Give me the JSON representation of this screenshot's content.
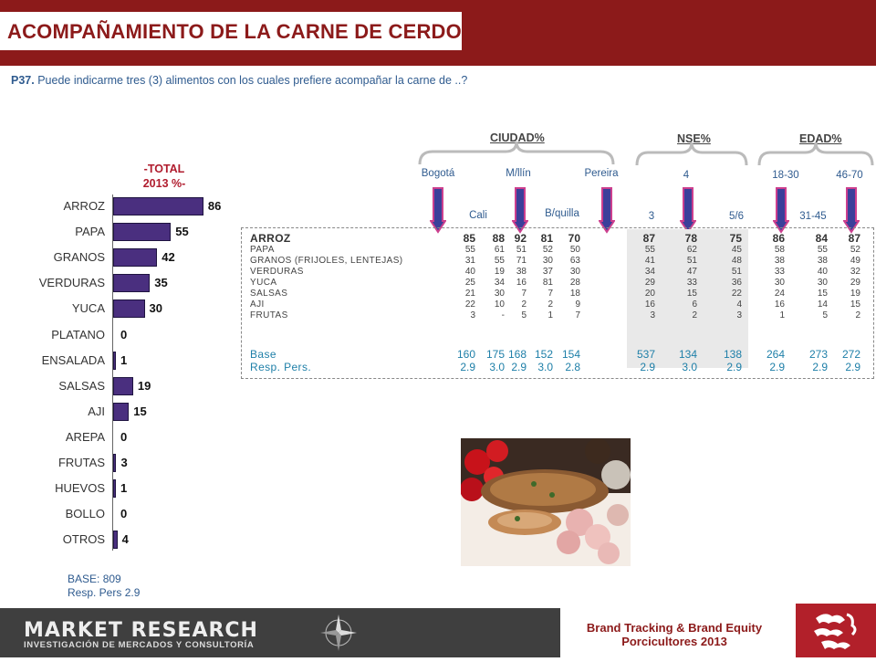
{
  "title": "ACOMPAÑAMIENTO DE LA CARNE DE  CERDO",
  "question": {
    "code": "P37.",
    "text": "Puede indicarme tres (3) alimentos con los cuales prefiere acompañar la carne de ..?"
  },
  "total_header": {
    "line1": "-TOTAL",
    "line2": "2013 %-"
  },
  "total_base": {
    "base_label": "BASE:",
    "base_value": "809",
    "resp_label": "Resp. Pers",
    "resp_value": "2.9"
  },
  "groups": {
    "ciudad": "CIUDAD%",
    "nse": "NSE%",
    "edad": "EDAD%"
  },
  "columns": [
    "Bogotá",
    "Cali",
    "M/llín",
    "B/quilla",
    "Pereira",
    "3",
    "4",
    "5/6",
    "18-30",
    "31-45",
    "46-70"
  ],
  "table_rows": [
    {
      "label": "ARROZ",
      "values": [
        "85",
        "88",
        "92",
        "81",
        "70",
        "87",
        "78",
        "75",
        "86",
        "84",
        "87"
      ]
    },
    {
      "label": "PAPA",
      "values": [
        "55",
        "61",
        "51",
        "52",
        "50",
        "55",
        "62",
        "45",
        "58",
        "55",
        "52"
      ]
    },
    {
      "label": "GRANOS (FRIJOLES, LENTEJAS)",
      "values": [
        "31",
        "55",
        "71",
        "30",
        "63",
        "41",
        "51",
        "48",
        "38",
        "38",
        "49"
      ]
    },
    {
      "label": "VERDURAS",
      "values": [
        "40",
        "19",
        "38",
        "37",
        "30",
        "34",
        "47",
        "51",
        "33",
        "40",
        "32"
      ]
    },
    {
      "label": "YUCA",
      "values": [
        "25",
        "34",
        "16",
        "81",
        "28",
        "29",
        "33",
        "36",
        "30",
        "30",
        "29"
      ]
    },
    {
      "label": "SALSAS",
      "values": [
        "21",
        "30",
        "7",
        "7",
        "18",
        "20",
        "15",
        "22",
        "24",
        "15",
        "19"
      ]
    },
    {
      "label": "AJI",
      "values": [
        "22",
        "10",
        "2",
        "2",
        "9",
        "16",
        "6",
        "4",
        "16",
        "14",
        "15"
      ]
    },
    {
      "label": "FRUTAS",
      "values": [
        "3",
        "-",
        "5",
        "1",
        "7",
        "3",
        "2",
        "3",
        "1",
        "5",
        "2"
      ]
    }
  ],
  "base_rows": [
    {
      "label": "Base",
      "values": [
        "160",
        "175",
        "168",
        "152",
        "154",
        "537",
        "134",
        "138",
        "264",
        "273",
        "272"
      ]
    },
    {
      "label": "Resp. Pers.",
      "values": [
        "2.9",
        "3.0",
        "2.9",
        "3.0",
        "2.8",
        "2.9",
        "3.0",
        "2.9",
        "2.9",
        "2.9",
        "2.9"
      ]
    }
  ],
  "footer": {
    "company": "MARKET RESEARCH",
    "subtitle": "INVESTIGACIÓN DE MERCADOS Y CONSULTORÍA",
    "line1": "Brand Tracking & Brand Equity",
    "line2": "Porcicultores 2013"
  },
  "colors": {
    "brand_red": "#8c1a1a",
    "bar": "#4a2f7f",
    "text_blue": "#2f5b8f",
    "base_blue": "#1e7fa8",
    "arrow_pink": "#cc3f8e",
    "arrow_blue": "#3b3f9a"
  },
  "chart_data": {
    "type": "bar",
    "orientation": "horizontal",
    "categories": [
      "ARROZ",
      "PAPA",
      "GRANOS",
      "VERDURAS",
      "YUCA",
      "PLATANO",
      "ENSALADA",
      "SALSAS",
      "AJI",
      "AREPA",
      "FRUTAS",
      "HUEVOS",
      "BOLLO",
      "OTROS"
    ],
    "values": [
      86,
      55,
      42,
      35,
      30,
      0,
      1,
      19,
      15,
      0,
      3,
      1,
      0,
      4
    ],
    "title": "-TOTAL 2013 %-",
    "xlim": [
      0,
      100
    ]
  }
}
